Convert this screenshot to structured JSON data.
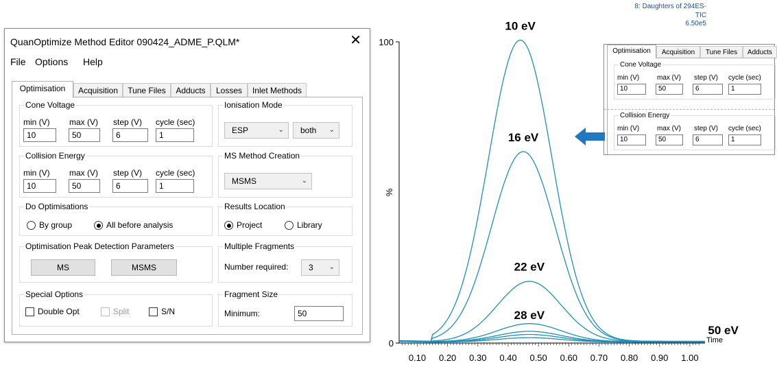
{
  "window": {
    "title": "QuanOptimize Method Editor 090424_ADME_P.QLM*",
    "close_glyph": "✕"
  },
  "menu": [
    "File",
    "Options",
    "Help"
  ],
  "tabs": [
    "Optimisation",
    "Acquisition",
    "Tune Files",
    "Adducts",
    "Losses",
    "Inlet Methods"
  ],
  "active_tab": "Optimisation",
  "cone_voltage": {
    "legend": "Cone Voltage",
    "labels": [
      "min (V)",
      "max (V)",
      "step (V)",
      "cycle (sec)"
    ],
    "values": [
      "10",
      "50",
      "6",
      "1"
    ]
  },
  "collision_energy": {
    "legend": "Collision Energy",
    "labels": [
      "min (V)",
      "max (V)",
      "step (V)",
      "cycle (sec)"
    ],
    "values": [
      "10",
      "50",
      "6",
      "1"
    ]
  },
  "ionisation_mode": {
    "legend": "Ionisation Mode",
    "mode": "ESP",
    "polarity": "both"
  },
  "ms_method_creation": {
    "legend": "MS Method Creation",
    "value": "MSMS"
  },
  "do_optimisations": {
    "legend": "Do Optimisations",
    "options": [
      "By group",
      "All before analysis"
    ],
    "selected": "All before analysis"
  },
  "results_location": {
    "legend": "Results Location",
    "options": [
      "Project",
      "Library"
    ],
    "selected": "Project"
  },
  "peak_detection": {
    "legend": "Optimisation Peak Detection Parameters",
    "buttons": [
      "MS",
      "MSMS"
    ]
  },
  "multiple_fragments": {
    "legend": "Multiple Fragments",
    "label": "Number required:",
    "value": "3"
  },
  "special_options": {
    "legend": "Special Options",
    "checkboxes": [
      {
        "label": "Double Opt",
        "checked": false,
        "enabled": true
      },
      {
        "label": "Split",
        "checked": false,
        "enabled": false
      },
      {
        "label": "S/N",
        "checked": false,
        "enabled": true
      }
    ]
  },
  "fragment_size": {
    "legend": "Fragment Size",
    "label": "Minimum:",
    "value": "50"
  },
  "inset": {
    "header": [
      "8: Daughters of 294ES-",
      "TIC",
      "6.50e5"
    ],
    "tabs": [
      "Optimisation",
      "Acquisition",
      "Tune Files",
      "Adducts"
    ],
    "cone_voltage_legend": "Cone Voltage",
    "collision_energy_legend": "Collision Energy",
    "labels": [
      "min (V)",
      "max (V)",
      "step (V)",
      "cycle (sec)"
    ],
    "cone_values": [
      "10",
      "50",
      "6",
      "1"
    ],
    "collision_values": [
      "10",
      "50",
      "6",
      "1"
    ]
  },
  "colors": {
    "trace": "#1f8fb8",
    "arrow": "#1f78c1",
    "header_text": "#1a4fa0"
  },
  "chart_data": {
    "type": "line",
    "xlabel": "Time",
    "ylabel": "%",
    "xlim": [
      0.04,
      1.05
    ],
    "ylim": [
      0,
      100
    ],
    "x_ticks": [
      "0.10",
      "0.20",
      "0.30",
      "0.40",
      "0.50",
      "0.60",
      "0.70",
      "0.80",
      "0.90",
      "1.00"
    ],
    "y_ticks": [
      "0",
      "100"
    ],
    "series": [
      {
        "name": "10 eV",
        "peak_x": 0.44,
        "peak_y": 100
      },
      {
        "name": "16 eV",
        "peak_x": 0.45,
        "peak_y": 63
      },
      {
        "name": "22 eV",
        "peak_x": 0.47,
        "peak_y": 20
      },
      {
        "peak_x": 0.47,
        "peak_y": 6
      },
      {
        "name": "28 eV",
        "peak_x": 0.47,
        "peak_y": 3.5
      },
      {
        "peak_x": 0.47,
        "peak_y": 2.5
      },
      {
        "name": "50 eV",
        "peak_x": 0.47,
        "peak_y": 1.5
      }
    ],
    "annotations": [
      "10 eV",
      "16 eV",
      "22 eV",
      "28 eV",
      "50 eV"
    ]
  }
}
